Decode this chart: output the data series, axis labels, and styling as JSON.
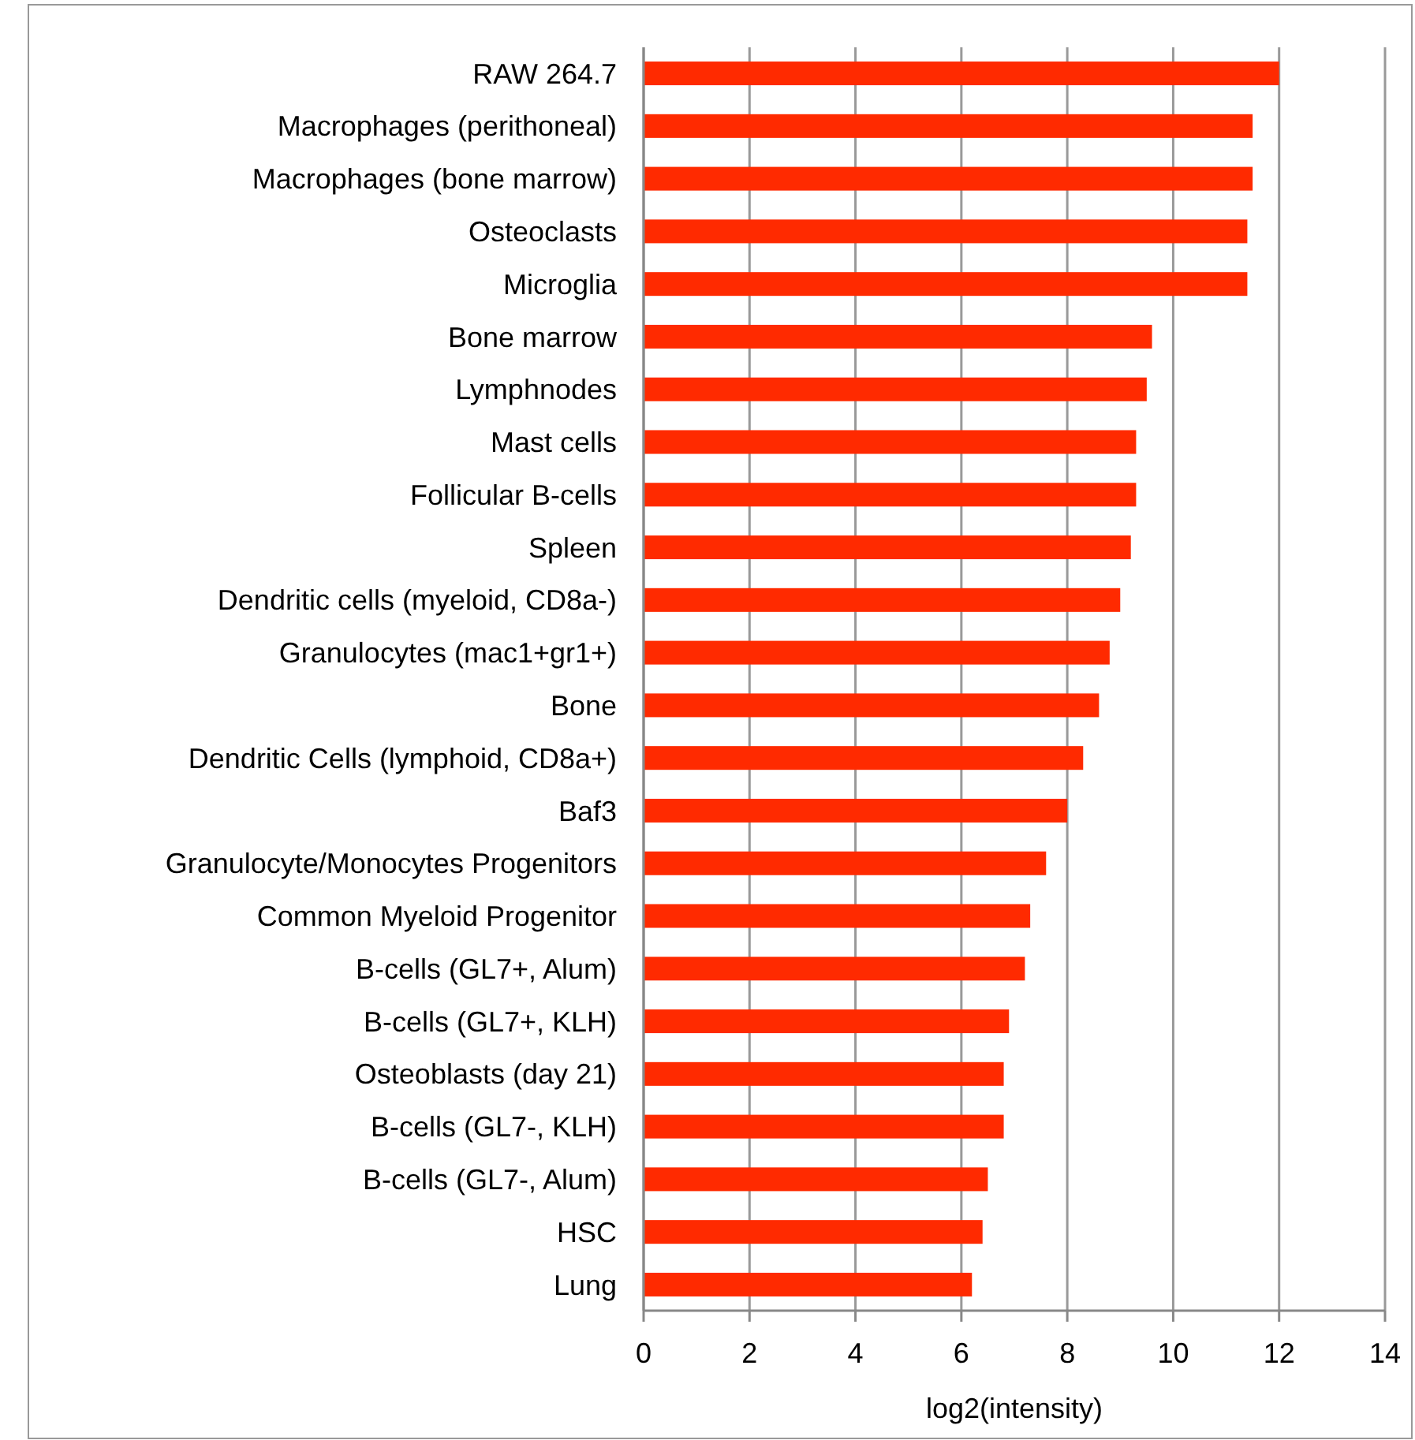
{
  "chart_data": {
    "type": "bar",
    "orientation": "horizontal",
    "xlabel": "log2(intensity)",
    "categories": [
      "RAW 264.7",
      "Macrophages (perithoneal)",
      "Macrophages (bone marrow)",
      "Osteoclasts",
      "Microglia",
      "Bone marrow",
      "Lymphnodes",
      "Mast cells",
      "Follicular B-cells",
      "Spleen",
      "Dendritic cells (myeloid, CD8a-)",
      "Granulocytes (mac1+gr1+)",
      "Bone",
      "Dendritic Cells (lymphoid, CD8a+)",
      "Baf3",
      "Granulocyte/Monocytes Progenitors",
      "Common Myeloid Progenitor",
      "B-cells (GL7+, Alum)",
      "B-cells (GL7+, KLH)",
      "Osteoblasts (day 21)",
      "B-cells (GL7-, KLH)",
      "B-cells (GL7-, Alum)",
      "HSC",
      "Lung"
    ],
    "values": [
      12.0,
      11.5,
      11.5,
      11.4,
      11.4,
      9.6,
      9.5,
      9.3,
      9.3,
      9.2,
      9.0,
      8.8,
      8.6,
      8.3,
      8.0,
      7.6,
      7.3,
      7.2,
      6.9,
      6.8,
      6.8,
      6.5,
      6.4,
      6.2
    ],
    "color": "#ff2a00",
    "xlim": [
      0,
      14
    ],
    "xticks": [
      0,
      2,
      4,
      6,
      8,
      10,
      12,
      14
    ],
    "grid": "x"
  }
}
